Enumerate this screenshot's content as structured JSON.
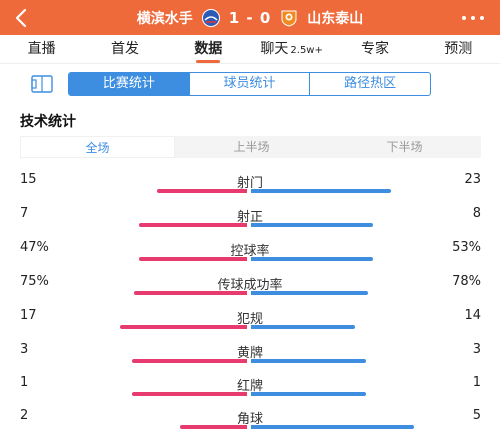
{
  "header": {
    "home_team": "横滨水手",
    "away_team": "山东泰山",
    "score": "1 - 0",
    "home_logo_icon": "yokohama-crest-icon",
    "away_logo_icon": "shandong-crest-icon"
  },
  "tabs": [
    {
      "label": "直播",
      "active": false
    },
    {
      "label": "首发",
      "active": false
    },
    {
      "label": "数据",
      "active": true
    },
    {
      "label": "聊天",
      "badge": "2.5w+",
      "active": false
    },
    {
      "label": "专家",
      "active": false
    },
    {
      "label": "预测",
      "active": false
    }
  ],
  "subtabs": [
    {
      "label": "比赛统计",
      "active": true
    },
    {
      "label": "球员统计",
      "active": false
    },
    {
      "label": "路径热区",
      "active": false
    }
  ],
  "section_title": "技术统计",
  "periods": [
    {
      "label": "全场",
      "active": true
    },
    {
      "label": "上半场",
      "active": false
    },
    {
      "label": "下半场",
      "active": false
    }
  ],
  "colors": {
    "brand": "#ef6a3a",
    "home_bar": "#e73a6e",
    "away_bar": "#3d8ee0"
  },
  "stats": [
    {
      "label": "射门",
      "home": "15",
      "away": "23",
      "home_frac": 0.39,
      "away_frac": 0.61
    },
    {
      "label": "射正",
      "home": "7",
      "away": "8",
      "home_frac": 0.47,
      "away_frac": 0.53
    },
    {
      "label": "控球率",
      "home": "47%",
      "away": "53%",
      "home_frac": 0.47,
      "away_frac": 0.53
    },
    {
      "label": "传球成功率",
      "home": "75%",
      "away": "78%",
      "home_frac": 0.49,
      "away_frac": 0.51
    },
    {
      "label": "犯规",
      "home": "17",
      "away": "14",
      "home_frac": 0.55,
      "away_frac": 0.45
    },
    {
      "label": "黄牌",
      "home": "3",
      "away": "3",
      "home_frac": 0.5,
      "away_frac": 0.5
    },
    {
      "label": "红牌",
      "home": "1",
      "away": "1",
      "home_frac": 0.5,
      "away_frac": 0.5
    },
    {
      "label": "角球",
      "home": "2",
      "away": "5",
      "home_frac": 0.29,
      "away_frac": 0.71
    }
  ]
}
